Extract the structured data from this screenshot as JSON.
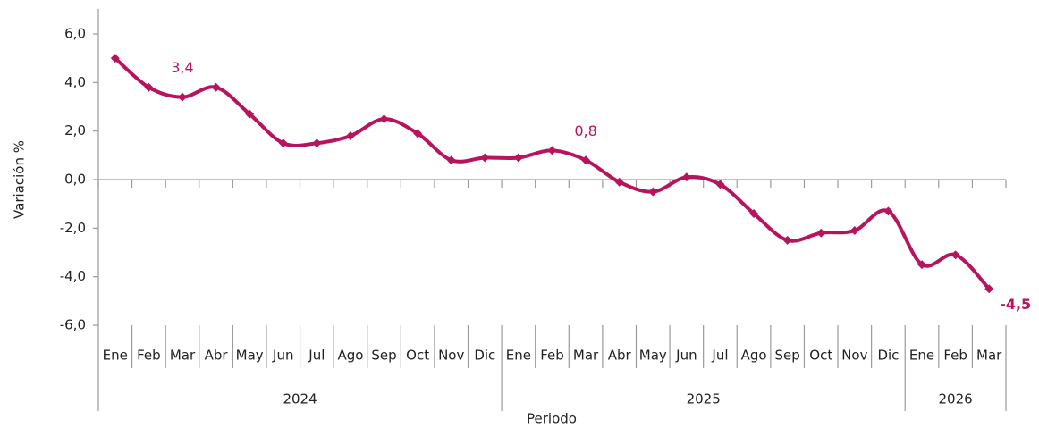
{
  "chart_data": {
    "type": "line",
    "x_label": "Periodo",
    "y_label": "Variación %",
    "categories": [
      "Ene",
      "Feb",
      "Mar",
      "Abr",
      "May",
      "Jun",
      "Jul",
      "Ago",
      "Sep",
      "Oct",
      "Nov",
      "Dic",
      "Ene",
      "Feb",
      "Mar",
      "Abr",
      "May",
      "Jun",
      "Jul",
      "Ago",
      "Sep",
      "Oct",
      "Nov",
      "Dic",
      "Ene",
      "Feb",
      "Mar"
    ],
    "years": [
      "2024",
      "2025",
      "2026"
    ],
    "series": [
      {
        "name": "Variación %",
        "color": "#b8145e",
        "values": [
          5.0,
          3.8,
          3.4,
          3.8,
          2.7,
          1.5,
          1.5,
          1.8,
          2.5,
          1.9,
          0.8,
          0.9,
          0.9,
          1.2,
          0.8,
          -0.1,
          -0.5,
          0.1,
          -0.2,
          -1.4,
          -2.5,
          -2.2,
          -2.1,
          -1.3,
          -3.5,
          -3.1,
          -4.5
        ],
        "value_labels": [
          null,
          null,
          "3,4",
          null,
          null,
          null,
          null,
          null,
          null,
          null,
          null,
          null,
          null,
          null,
          "0,8",
          null,
          null,
          null,
          null,
          null,
          null,
          null,
          null,
          null,
          null,
          null,
          "-4,5"
        ]
      }
    ],
    "ylim": [
      -6,
      6
    ],
    "yticks": [
      {
        "value": -6,
        "label": "-6,0"
      },
      {
        "value": -4,
        "label": "-4,0"
      },
      {
        "value": -2,
        "label": "-2,0"
      },
      {
        "value": 0,
        "label": "0,0"
      },
      {
        "value": 2,
        "label": "2,0"
      },
      {
        "value": 4,
        "label": "4,0"
      },
      {
        "value": 6,
        "label": "6,0"
      }
    ],
    "grid": false
  }
}
